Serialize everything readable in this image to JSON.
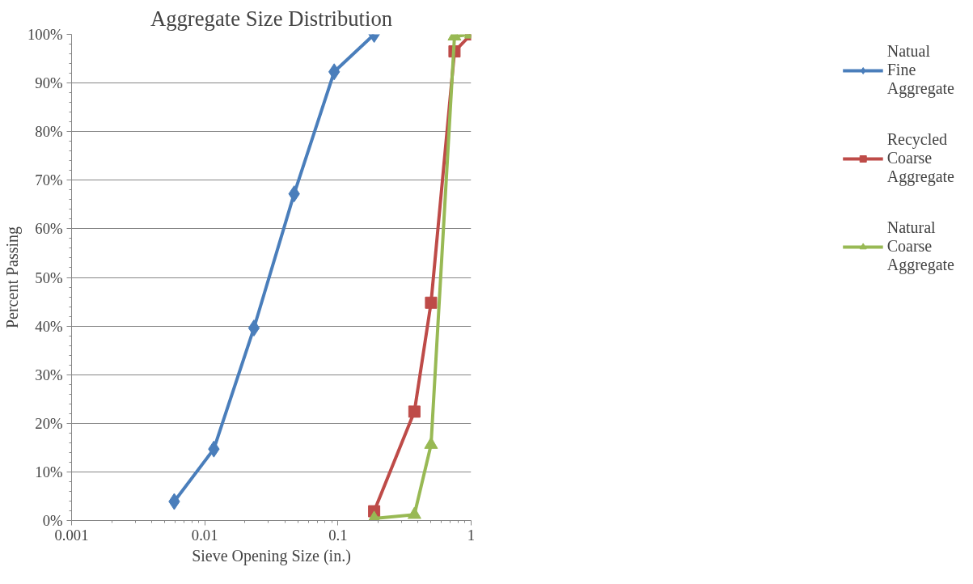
{
  "chart_data": {
    "type": "line",
    "title": "Aggregate Size Distribution",
    "xlabel": "Sieve Opening Size (in.)",
    "ylabel": "Percent Passing",
    "log": "x",
    "xlim": [
      0.001,
      1
    ],
    "xticks": [
      0.001,
      0.01,
      0.1,
      1
    ],
    "ylim": [
      0,
      100
    ],
    "yticks": [
      {
        "value": 0,
        "label": "0%"
      },
      {
        "value": 10,
        "label": "10%"
      },
      {
        "value": 20,
        "label": "20%"
      },
      {
        "value": 30,
        "label": "30%"
      },
      {
        "value": 40,
        "label": "40%"
      },
      {
        "value": 50,
        "label": "50%"
      },
      {
        "value": 60,
        "label": "60%"
      },
      {
        "value": 70,
        "label": "70%"
      },
      {
        "value": 80,
        "label": "80%"
      },
      {
        "value": 90,
        "label": "90%"
      },
      {
        "value": 100,
        "label": "100%"
      }
    ],
    "grid": "y",
    "legend": "right",
    "line_style": "solid",
    "series": [
      {
        "name": "Natual Fine Aggregate",
        "color": "#4a7ebb",
        "marker": "diamond",
        "x": [
          0.0059,
          0.0117,
          0.0234,
          0.0469,
          0.0937,
          0.187
        ],
        "values": [
          3.9,
          14.7,
          39.6,
          67.2,
          92.3,
          100
        ]
      },
      {
        "name": "Recycled Coarse Aggregate",
        "color": "#be4b48",
        "marker": "square",
        "x": [
          0.187,
          0.375,
          0.5,
          0.75,
          1
        ],
        "values": [
          1.9,
          22.4,
          44.8,
          96.5,
          100
        ]
      },
      {
        "name": "Natural Coarse Aggregate",
        "color": "#98b954",
        "marker": "triangle",
        "x": [
          0.187,
          0.375,
          0.5,
          0.75,
          1
        ],
        "values": [
          0.4,
          1.2,
          15.6,
          99.6,
          100
        ]
      }
    ]
  }
}
